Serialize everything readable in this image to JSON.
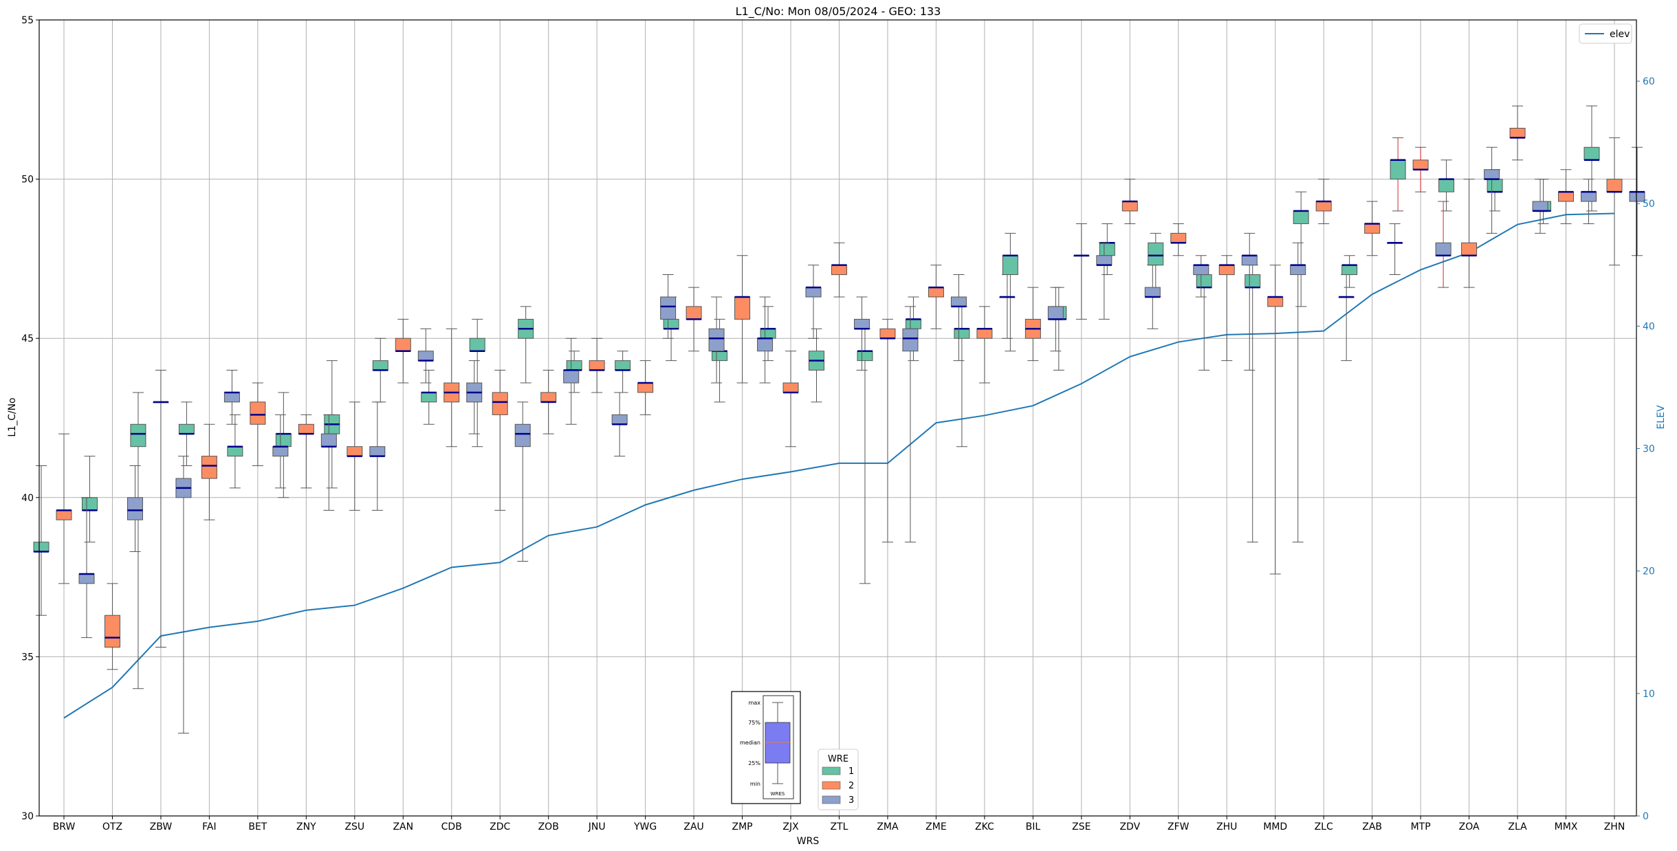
{
  "chart_data": {
    "type": "box",
    "title": "L1_C/No: Mon 08/05/2024 - GEO: 133",
    "xlabel": "WRS",
    "ylabel": "L1_C/No",
    "y2label": "ELEV",
    "ylim": [
      30,
      55
    ],
    "y2lim": [
      0,
      65
    ],
    "yticks": [
      30,
      35,
      40,
      45,
      50,
      55
    ],
    "y2ticks": [
      0,
      10,
      20,
      30,
      40,
      50,
      60
    ],
    "grid": true,
    "categories": [
      "BRW",
      "OTZ",
      "ZBW",
      "FAI",
      "BET",
      "ZNY",
      "ZSU",
      "ZAN",
      "CDB",
      "ZDC",
      "ZOB",
      "JNU",
      "YWG",
      "ZAU",
      "ZMP",
      "ZJX",
      "ZTL",
      "ZMA",
      "ZME",
      "ZKC",
      "BIL",
      "ZSE",
      "ZDV",
      "ZFW",
      "ZHU",
      "MMD",
      "ZLC",
      "ZAB",
      "MTP",
      "ZOA",
      "ZLA",
      "MMX",
      "ZHN"
    ],
    "series_colors": {
      "1": "#66c2a5",
      "2": "#fc8d62",
      "3": "#8da0cb"
    },
    "median_color": "#00008b",
    "line_color": "#1f77b4",
    "legend_wre": {
      "title": "WRE",
      "entries": [
        "1",
        "2",
        "3"
      ],
      "position": "bottom-center"
    },
    "legend_line": {
      "label": "elev",
      "position": "upper-right"
    },
    "elev_line": {
      "name": "elev",
      "values": [
        8,
        10.5,
        14.7,
        15.4,
        15.9,
        16.8,
        17.2,
        18.6,
        20.3,
        20.7,
        22.9,
        23.6,
        25.4,
        26.6,
        27.5,
        28.1,
        28.8,
        28.8,
        32.1,
        32.7,
        33.5,
        35.3,
        37.5,
        38.7,
        39.3,
        39.4,
        39.6,
        42.6,
        44.6,
        46.0,
        48.3,
        49.1,
        49.2
      ]
    },
    "boxes": {
      "1": [
        [
          36.3,
          38.3,
          38.3,
          38.6,
          41.0
        ],
        [
          38.6,
          39.6,
          39.6,
          40.0,
          41.3
        ],
        [
          34.0,
          41.6,
          42.0,
          42.3,
          43.3
        ],
        [
          41.0,
          42.0,
          42.0,
          42.3,
          43.0
        ],
        [
          40.3,
          41.3,
          41.6,
          41.6,
          42.6
        ],
        [
          40.0,
          41.6,
          42.0,
          42.0,
          43.3
        ],
        [
          40.3,
          42.0,
          42.3,
          42.6,
          44.3
        ],
        [
          43.0,
          44.0,
          44.0,
          44.3,
          45.0
        ],
        [
          42.3,
          43.0,
          43.3,
          43.3,
          44.0
        ],
        [
          41.6,
          44.6,
          44.6,
          45.0,
          45.6
        ],
        [
          43.6,
          45.0,
          45.3,
          45.6,
          46.0
        ],
        [
          43.3,
          44.0,
          44.0,
          44.3,
          44.6
        ],
        [
          43.3,
          44.0,
          44.0,
          44.3,
          44.6
        ],
        [
          44.3,
          45.3,
          45.3,
          45.6,
          46.3
        ],
        [
          43.0,
          44.3,
          44.6,
          44.6,
          45.6
        ],
        [
          44.3,
          45.0,
          45.3,
          45.3,
          46.0
        ],
        [
          43.0,
          44.0,
          44.3,
          44.6,
          45.3
        ],
        [
          37.3,
          44.3,
          44.6,
          44.6,
          45.3
        ],
        [
          44.3,
          45.3,
          45.6,
          45.6,
          46.3
        ],
        [
          41.6,
          45.0,
          45.3,
          45.3,
          46.0
        ],
        [
          44.6,
          47.0,
          47.6,
          47.6,
          48.3
        ],
        [
          44.0,
          45.6,
          45.6,
          46.0,
          46.6
        ],
        [
          47.0,
          47.6,
          48.0,
          48.0,
          48.6
        ],
        [
          46.3,
          47.3,
          47.6,
          48.0,
          48.3
        ],
        [
          44.0,
          46.6,
          46.6,
          47.0,
          47.3
        ],
        [
          38.6,
          46.6,
          46.6,
          47.0,
          47.3
        ],
        [
          46.0,
          48.6,
          49.0,
          49.0,
          49.6
        ],
        [
          46.6,
          47.0,
          47.3,
          47.3,
          47.6
        ],
        [
          49.0,
          50.0,
          50.6,
          50.6,
          51.3
        ],
        [
          49.0,
          49.6,
          50.0,
          50.0,
          50.6
        ],
        [
          49.0,
          49.6,
          49.6,
          50.0,
          50.3
        ],
        [
          48.6,
          49.0,
          49.0,
          49.3,
          50.0
        ],
        [
          49.0,
          50.6,
          50.6,
          51.0,
          52.3
        ]
      ],
      "2": [
        [
          37.3,
          39.3,
          39.6,
          39.6,
          42.0
        ],
        [
          34.6,
          35.3,
          35.6,
          36.3,
          37.3
        ],
        [
          35.3,
          43.0,
          43.0,
          43.0,
          44.0
        ],
        [
          39.3,
          40.6,
          41.0,
          41.3,
          42.3
        ],
        [
          41.0,
          42.3,
          42.6,
          43.0,
          43.6
        ],
        [
          40.3,
          42.0,
          42.0,
          42.3,
          42.6
        ],
        [
          39.6,
          41.3,
          41.3,
          41.6,
          43.0
        ],
        [
          43.6,
          44.6,
          44.6,
          45.0,
          45.6
        ],
        [
          41.6,
          43.0,
          43.3,
          43.6,
          45.3
        ],
        [
          39.6,
          42.6,
          43.0,
          43.3,
          44.0
        ],
        [
          42.0,
          43.0,
          43.0,
          43.3,
          44.0
        ],
        [
          43.3,
          44.0,
          44.0,
          44.3,
          45.0
        ],
        [
          42.6,
          43.3,
          43.6,
          43.6,
          44.3
        ],
        [
          44.6,
          45.6,
          45.6,
          46.0,
          46.6
        ],
        [
          43.6,
          45.6,
          46.3,
          46.3,
          47.6
        ],
        [
          41.6,
          43.3,
          43.3,
          43.6,
          44.6
        ],
        [
          46.3,
          47.0,
          47.3,
          47.3,
          48.0
        ],
        [
          38.6,
          45.0,
          45.0,
          45.3,
          45.6
        ],
        [
          45.3,
          46.3,
          46.6,
          46.6,
          47.3
        ],
        [
          43.6,
          45.0,
          45.3,
          45.3,
          46.0
        ],
        [
          44.3,
          45.0,
          45.3,
          45.6,
          46.6
        ],
        [
          45.6,
          47.6,
          47.6,
          47.6,
          48.6
        ],
        [
          48.6,
          49.0,
          49.3,
          49.3,
          50.0
        ],
        [
          47.6,
          48.0,
          48.0,
          48.3,
          48.6
        ],
        [
          44.3,
          47.0,
          47.3,
          47.3,
          47.6
        ],
        [
          37.6,
          46.0,
          46.3,
          46.3,
          47.3
        ],
        [
          48.6,
          49.0,
          49.3,
          49.3,
          50.0
        ],
        [
          47.6,
          48.3,
          48.6,
          48.6,
          49.3
        ],
        [
          49.6,
          50.3,
          50.3,
          50.6,
          51.0
        ],
        [
          46.6,
          47.6,
          47.6,
          48.0,
          50.0
        ],
        [
          50.6,
          51.3,
          51.3,
          51.6,
          52.3
        ],
        [
          48.6,
          49.3,
          49.6,
          49.6,
          50.3
        ],
        [
          47.3,
          49.6,
          49.6,
          50.0,
          51.3
        ]
      ],
      "3": [
        [
          35.6,
          37.3,
          37.6,
          37.6,
          40.0
        ],
        [
          38.3,
          39.3,
          39.6,
          40.0,
          41.0
        ],
        [
          32.6,
          40.0,
          40.3,
          40.6,
          41.3
        ],
        [
          42.3,
          43.0,
          43.3,
          43.3,
          44.0
        ],
        [
          40.3,
          41.3,
          41.6,
          41.6,
          42.6
        ],
        [
          39.6,
          41.6,
          41.6,
          42.0,
          42.6
        ],
        [
          39.6,
          41.3,
          41.3,
          41.6,
          43.0
        ],
        [
          43.6,
          44.3,
          44.3,
          44.6,
          45.3
        ],
        [
          42.0,
          43.0,
          43.3,
          43.6,
          44.3
        ],
        [
          38.0,
          41.6,
          42.0,
          42.3,
          43.0
        ],
        [
          42.3,
          43.6,
          44.0,
          44.0,
          45.0
        ],
        [
          41.3,
          42.3,
          42.3,
          42.6,
          43.3
        ],
        [
          45.0,
          45.6,
          46.0,
          46.3,
          47.0
        ],
        [
          43.6,
          44.6,
          45.0,
          45.3,
          46.3
        ],
        [
          43.6,
          44.6,
          45.0,
          45.0,
          46.3
        ],
        [
          45.0,
          46.3,
          46.6,
          46.6,
          47.3
        ],
        [
          44.0,
          45.3,
          45.3,
          45.6,
          46.3
        ],
        [
          38.6,
          44.6,
          45.0,
          45.3,
          46.0
        ],
        [
          44.3,
          46.0,
          46.0,
          46.3,
          47.0
        ],
        [
          45.0,
          46.3,
          46.3,
          46.3,
          47.0
        ],
        [
          44.6,
          45.6,
          45.6,
          46.0,
          46.6
        ],
        [
          45.6,
          47.3,
          47.3,
          47.6,
          48.0
        ],
        [
          45.3,
          46.3,
          46.3,
          46.6,
          47.3
        ],
        [
          46.3,
          47.0,
          47.3,
          47.3,
          47.6
        ],
        [
          44.0,
          47.3,
          47.6,
          47.6,
          48.3
        ],
        [
          38.6,
          47.0,
          47.3,
          47.3,
          48.0
        ],
        [
          44.3,
          46.3,
          46.3,
          46.3,
          47.0
        ],
        [
          47.0,
          48.0,
          48.0,
          48.0,
          48.6
        ],
        [
          46.6,
          47.6,
          47.6,
          48.0,
          49.3
        ],
        [
          48.3,
          50.0,
          50.0,
          50.3,
          51.0
        ],
        [
          48.3,
          49.0,
          49.0,
          49.3,
          50.0
        ],
        [
          48.6,
          49.3,
          49.6,
          49.6,
          50.0
        ],
        [
          47.6,
          49.3,
          49.6,
          49.6,
          51.0
        ]
      ]
    },
    "red_whisker_categories": [
      "MTP"
    ],
    "inset_legend": {
      "labels": [
        "max",
        "75%",
        "median",
        "25%",
        "min"
      ],
      "xtick": "WRES"
    }
  }
}
